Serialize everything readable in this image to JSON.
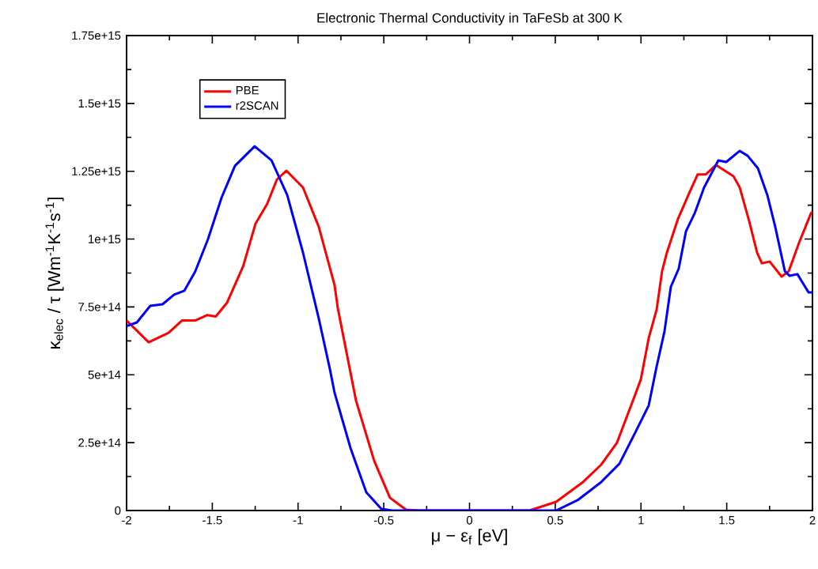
{
  "chart_data": {
    "type": "line",
    "title": "Electronic Thermal Conductivity in TaFeSb at 300 K",
    "xlabel": "μ − ε$_{f}$ [eV]",
    "ylabel": "κ$_{elec}$ / τ  [Wm$^{-1}$K$^{-1}$s$^{-1}$]",
    "xlim": [
      -2,
      2
    ],
    "ylim": [
      0,
      1750000000000000.0
    ],
    "xticks": [
      -2,
      -1.5,
      -1,
      -0.5,
      0,
      0.5,
      1,
      1.5,
      2
    ],
    "yticks": [
      {
        "value": 0,
        "label": "0"
      },
      {
        "value": 250000000000000.0,
        "label": "2.5e+14"
      },
      {
        "value": 500000000000000.0,
        "label": "5e+14"
      },
      {
        "value": 750000000000000.0,
        "label": "7.5e+14"
      },
      {
        "value": 1000000000000000.0,
        "label": "1e+15"
      },
      {
        "value": 1250000000000000.0,
        "label": "1.25e+15"
      },
      {
        "value": 1500000000000000.0,
        "label": "1.5e+15"
      },
      {
        "value": 1750000000000000.0,
        "label": "1.75e+15"
      }
    ],
    "legend": "top left",
    "grid": false,
    "marker": "none",
    "line_style": "solid",
    "series": [
      {
        "name": "PBE",
        "color": "#ff0000",
        "x": [
          -2,
          -1.871,
          -1.755,
          -1.677,
          -1.6,
          -1.53,
          -1.48,
          -1.414,
          -1.32,
          -1.248,
          -1.18,
          -1.123,
          -1.068,
          -0.971,
          -0.879,
          -0.787,
          -0.768,
          -0.662,
          -0.556,
          -0.464,
          -0.37,
          -0.3,
          0.35,
          0.505,
          0.662,
          0.768,
          0.86,
          0.953,
          0.999,
          1.045,
          1.091,
          1.123,
          1.151,
          1.216,
          1.276,
          1.33,
          1.377,
          1.437,
          1.539,
          1.576,
          1.631,
          1.677,
          1.705,
          1.751,
          1.82,
          1.862,
          1.922,
          1.991,
          2
        ],
        "values": [
          700000000000000.0,
          620000000000000.0,
          655000000000000.0,
          700000000000000.0,
          700000000000000.0,
          720000000000000.0,
          715000000000000.0,
          766000000000000.0,
          900000000000000.0,
          1057000000000000.0,
          1130000000000000.0,
          1220000000000000.0,
          1252000000000000.0,
          1190000000000000.0,
          1045000000000000.0,
          830000000000000.0,
          745000000000000.0,
          405000000000000.0,
          183000000000000.0,
          47000000000000.0,
          3000000000000.0,
          0,
          0,
          32000000000000.0,
          105000000000000.0,
          169000000000000.0,
          250000000000000.0,
          405000000000000.0,
          483000000000000.0,
          635000000000000.0,
          740000000000000.0,
          882000000000000.0,
          950000000000000.0,
          1075000000000000.0,
          1162000000000000.0,
          1238000000000000.0,
          1238000000000000.0,
          1273000000000000.0,
          1232000000000000.0,
          1190000000000000.0,
          1066000000000000.0,
          950000000000000.0,
          911000000000000.0,
          917000000000000.0,
          862000000000000.0,
          882000000000000.0,
          987000000000000.0,
          1095000000000000.0,
          1100000000000000.0
        ]
      },
      {
        "name": "r2SCAN",
        "color": "#0000ff",
        "x": [
          -2,
          -1.94,
          -1.862,
          -1.79,
          -1.723,
          -1.663,
          -1.6,
          -1.525,
          -1.446,
          -1.368,
          -1.253,
          -1.155,
          -1.063,
          -0.971,
          -0.879,
          -0.814,
          -0.787,
          -0.694,
          -0.602,
          -0.514,
          -0.45,
          0.505,
          0.63,
          0.768,
          0.874,
          0.967,
          1.045,
          1.091,
          1.137,
          1.174,
          1.22,
          1.262,
          1.313,
          1.368,
          1.451,
          1.497,
          1.576,
          1.622,
          1.682,
          1.737,
          1.783,
          1.839,
          1.866,
          1.912,
          1.977,
          2
        ],
        "values": [
          680000000000000.0,
          693000000000000.0,
          754000000000000.0,
          760000000000000.0,
          795000000000000.0,
          810000000000000.0,
          880000000000000.0,
          1000000000000000.0,
          1153000000000000.0,
          1270000000000000.0,
          1342000000000000.0,
          1290000000000000.0,
          1162000000000000.0,
          950000000000000.0,
          707000000000000.0,
          520000000000000.0,
          434000000000000.0,
          230000000000000.0,
          67000000000000.0,
          6000000000000.0,
          0,
          0,
          38000000000000.0,
          105000000000000.0,
          172000000000000.0,
          288000000000000.0,
          387000000000000.0,
          530000000000000.0,
          660000000000000.0,
          824000000000000.0,
          891000000000000.0,
          1028000000000000.0,
          1095000000000000.0,
          1190000000000000.0,
          1290000000000000.0,
          1284000000000000.0,
          1325000000000000.0,
          1307000000000000.0,
          1261000000000000.0,
          1162000000000000.0,
          1045000000000000.0,
          882000000000000.0,
          865000000000000.0,
          871000000000000.0,
          804000000000000.0,
          804000000000000.0
        ]
      }
    ]
  }
}
